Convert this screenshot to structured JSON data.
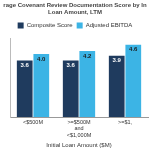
{
  "chart_data": {
    "type": "bar",
    "title": [
      "rage Covenant Review Documentation Score by In",
      "Loan Amount, LTM"
    ],
    "x_label": "Initial Loan Amount ($M)",
    "categories": [
      "<$500M",
      ">=$500M and <$1,000M",
      ">=$1,"
    ],
    "series": [
      {
        "name": "Composite Score",
        "color": "#1f3b5e",
        "values": [
          3.6,
          3.6,
          3.9
        ],
        "value_labels": [
          "3.6",
          "3.6",
          "3.9"
        ]
      },
      {
        "name": "Adjusted EBITDA",
        "color": "#3cb4e5",
        "values": [
          4.0,
          4.2,
          4.6
        ],
        "value_labels": [
          "4.0",
          "4.2",
          "4.6"
        ]
      }
    ],
    "ylim": [
      0,
      5
    ],
    "legend": "top",
    "grid": false,
    "data_labels": true,
    "tick_labels": "x"
  }
}
